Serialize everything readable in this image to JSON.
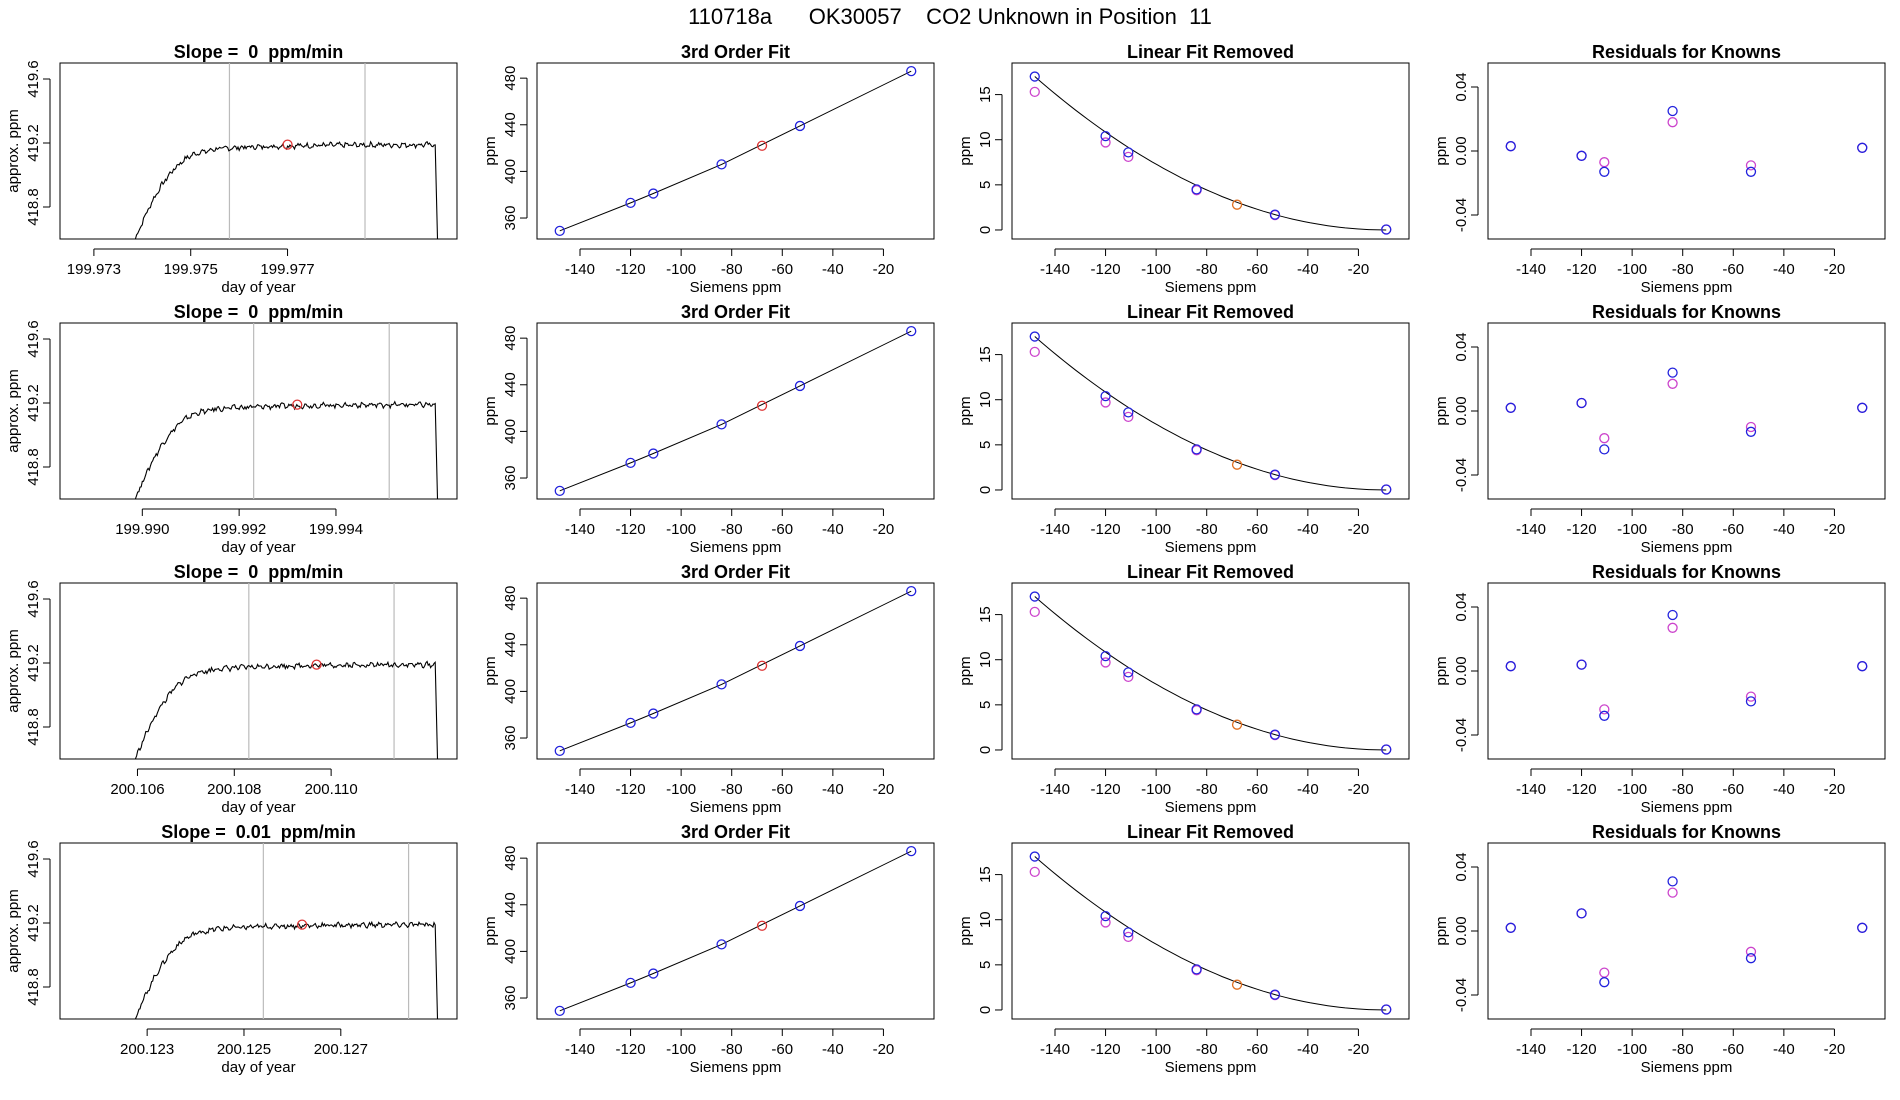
{
  "figure_title": "110718a      OK30057    CO2 Unknown in Position  11",
  "rows": [
    {
      "slope_title": "Slope =  0  ppm/min",
      "doy_ticks": [
        "199.973",
        "199.975",
        "199.977"
      ]
    },
    {
      "slope_title": "Slope =  0  ppm/min",
      "doy_ticks": [
        "199.990",
        "199.992",
        "199.994"
      ]
    },
    {
      "slope_title": "Slope =  0  ppm/min",
      "doy_ticks": [
        "200.106",
        "200.108",
        "200.110"
      ]
    },
    {
      "slope_title": "Slope =  0.01  ppm/min",
      "doy_ticks": [
        "200.123",
        "200.125",
        "200.127"
      ]
    }
  ],
  "labels": {
    "fit_title": "3rd Order Fit",
    "lin_title": "Linear Fit Removed",
    "res_title": "Residuals for Knowns",
    "doy_xlabel": "day of year",
    "doy_ylabel": "approx. ppm",
    "siemens_xlabel": "Siemens ppm",
    "ppm_ylabel": "ppm"
  },
  "colors": {
    "known": "#2222dd",
    "known_alt": "#cc44cc",
    "unknown": "#dd3333",
    "unknown_lin": "#e07020",
    "trace": "#000000",
    "marker_line": "#bbbbbb"
  },
  "chart_data": [
    {
      "type": "line",
      "id": "timeseries",
      "title_per_row": [
        "Slope =  0  ppm/min",
        "Slope =  0  ppm/min",
        "Slope =  0  ppm/min",
        "Slope =  0.01  ppm/min"
      ],
      "xlabel": "day of year",
      "ylabel": "approx. ppm",
      "ylim": [
        418.6,
        419.7
      ],
      "yticks": [
        418.8,
        419.2,
        419.6
      ],
      "xlim_per_row": [
        [
          199.9723,
          199.9805
        ],
        [
          199.9883,
          199.9965
        ],
        [
          200.1044,
          200.1126
        ],
        [
          200.1212,
          200.1294
        ]
      ],
      "xticks_per_row": [
        [
          199.973,
          199.975,
          199.977
        ],
        [
          199.99,
          199.992,
          199.994
        ],
        [
          200.106,
          200.108,
          200.11
        ],
        [
          200.123,
          200.125,
          200.127
        ]
      ],
      "plateau_ppm": 419.19,
      "sample_line_day_per_row": [
        [
          199.9758,
          199.9786
        ],
        [
          199.9923,
          199.9951
        ],
        [
          200.1083,
          200.1113
        ],
        [
          200.1254,
          200.1284
        ]
      ],
      "unknown_point_per_row": [
        [
          199.977,
          419.19
        ],
        [
          199.9932,
          419.19
        ],
        [
          200.1097,
          419.19
        ],
        [
          200.1262,
          419.19
        ]
      ],
      "grid": false
    },
    {
      "type": "scatter",
      "id": "third_order_fit",
      "title": "3rd Order Fit",
      "xlabel": "Siemens ppm",
      "ylabel": "ppm",
      "xlim": [
        -157,
        0
      ],
      "ylim": [
        342,
        493
      ],
      "xticks": [
        -140,
        -120,
        -100,
        -80,
        -60,
        -40,
        -20
      ],
      "yticks": [
        360,
        400,
        440,
        480
      ],
      "knowns": [
        [
          -148,
          349
        ],
        [
          -120,
          373
        ],
        [
          -111,
          381
        ],
        [
          -84,
          406
        ],
        [
          -53,
          439
        ],
        [
          -9,
          486
        ]
      ],
      "unknown": [
        [
          -68,
          422
        ]
      ],
      "fit_line": true,
      "grid": false
    },
    {
      "type": "scatter",
      "id": "linear_fit_removed",
      "title": "Linear Fit Removed",
      "xlabel": "Siemens ppm",
      "ylabel": "ppm",
      "xlim": [
        -157,
        0
      ],
      "ylim": [
        -1,
        18.5
      ],
      "xticks": [
        -140,
        -120,
        -100,
        -80,
        -60,
        -40,
        -20
      ],
      "yticks": [
        0,
        5,
        10,
        15
      ],
      "knowns": [
        [
          -148,
          17.0
        ],
        [
          -120,
          10.4
        ],
        [
          -111,
          8.6
        ],
        [
          -84,
          4.5
        ],
        [
          -53,
          1.7
        ],
        [
          -9,
          0.05
        ]
      ],
      "knowns_alt": [
        [
          -148,
          15.3
        ],
        [
          -120,
          9.7
        ],
        [
          -111,
          8.1
        ],
        [
          -84,
          4.4
        ],
        [
          -53,
          1.65
        ],
        [
          -9,
          0.05
        ]
      ],
      "unknown": [
        [
          -68,
          2.8
        ]
      ],
      "curve": "quadratic through (-148,17.0) vertex near (-9,0)",
      "grid": false
    },
    {
      "type": "scatter",
      "id": "residuals_for_knowns",
      "title": "Residuals for Knowns",
      "xlabel": "Siemens ppm",
      "ylabel": "ppm",
      "xlim": [
        -157,
        0
      ],
      "ylim": [
        -0.055,
        0.055
      ],
      "xticks": [
        -140,
        -120,
        -100,
        -80,
        -60,
        -40,
        -20
      ],
      "yticks": [
        -0.04,
        0.0,
        0.04
      ],
      "series": [
        {
          "name": "row1",
          "knowns": [
            [
              -148,
              0.003
            ],
            [
              -120,
              -0.003
            ],
            [
              -111,
              -0.013
            ],
            [
              -84,
              0.025
            ],
            [
              -53,
              -0.013
            ],
            [
              -9,
              0.002
            ]
          ],
          "knowns_alt": [
            [
              -148,
              0.003
            ],
            [
              -120,
              -0.003
            ],
            [
              -111,
              -0.007
            ],
            [
              -84,
              0.018
            ],
            [
              -53,
              -0.009
            ],
            [
              -9,
              0.002
            ]
          ]
        },
        {
          "name": "row2",
          "knowns": [
            [
              -148,
              0.002
            ],
            [
              -120,
              0.005
            ],
            [
              -111,
              -0.024
            ],
            [
              -84,
              0.024
            ],
            [
              -53,
              -0.013
            ],
            [
              -9,
              0.002
            ]
          ],
          "knowns_alt": [
            [
              -148,
              0.002
            ],
            [
              -120,
              0.005
            ],
            [
              -111,
              -0.017
            ],
            [
              -84,
              0.017
            ],
            [
              -53,
              -0.01
            ],
            [
              -9,
              0.002
            ]
          ]
        },
        {
          "name": "row3",
          "knowns": [
            [
              -148,
              0.003
            ],
            [
              -120,
              0.004
            ],
            [
              -111,
              -0.028
            ],
            [
              -84,
              0.035
            ],
            [
              -53,
              -0.019
            ],
            [
              -9,
              0.003
            ]
          ],
          "knowns_alt": [
            [
              -148,
              0.003
            ],
            [
              -120,
              0.004
            ],
            [
              -111,
              -0.024
            ],
            [
              -84,
              0.027
            ],
            [
              -53,
              -0.016
            ],
            [
              -9,
              0.003
            ]
          ]
        },
        {
          "name": "row4",
          "knowns": [
            [
              -148,
              0.002
            ],
            [
              -120,
              0.011
            ],
            [
              -111,
              -0.032
            ],
            [
              -84,
              0.031
            ],
            [
              -53,
              -0.017
            ],
            [
              -9,
              0.002
            ]
          ],
          "knowns_alt": [
            [
              -148,
              0.002
            ],
            [
              -120,
              0.011
            ],
            [
              -111,
              -0.026
            ],
            [
              -84,
              0.024
            ],
            [
              -53,
              -0.013
            ],
            [
              -9,
              0.002
            ]
          ]
        }
      ],
      "grid": false
    }
  ]
}
